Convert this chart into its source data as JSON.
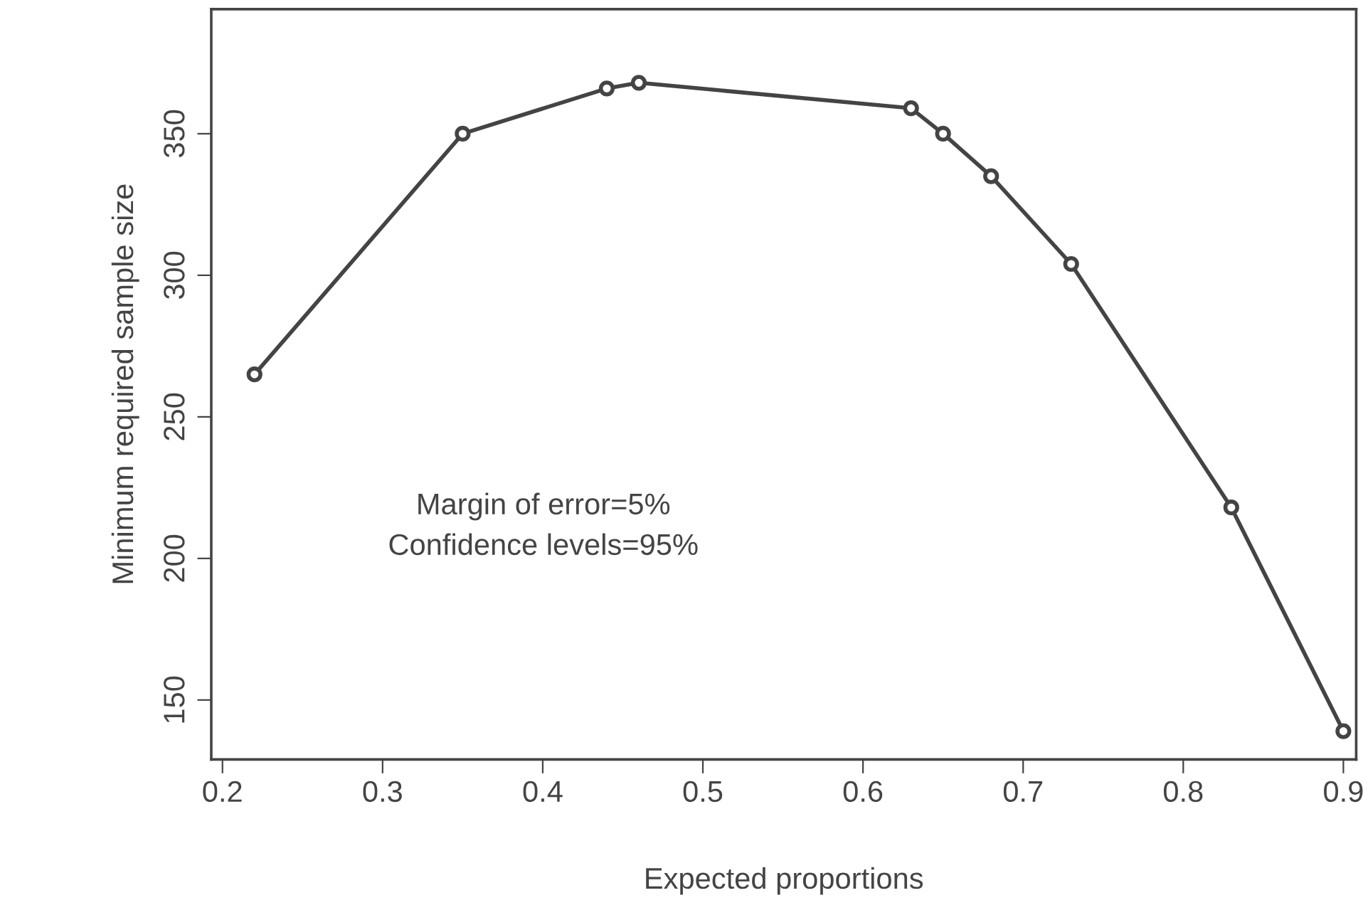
{
  "chart_data": {
    "type": "line",
    "xlabel": "Expected proportions",
    "ylabel": "Minimum required sample size",
    "x": [
      0.22,
      0.35,
      0.44,
      0.46,
      0.63,
      0.65,
      0.68,
      0.73,
      0.83,
      0.9
    ],
    "series": [
      {
        "color": "#444444",
        "values": [
          265,
          350,
          366,
          368,
          359,
          350,
          335,
          304,
          218,
          139
        ]
      }
    ],
    "marker": "circle",
    "line_style": "solid",
    "grid": false,
    "legend": false,
    "xlim": [
      0.193,
      0.908
    ],
    "ylim": [
      129,
      394
    ],
    "xticks": [
      0.2,
      0.3,
      0.4,
      0.5,
      0.6,
      0.7,
      0.8,
      0.9
    ],
    "yticks": [
      150,
      200,
      250,
      300,
      350
    ],
    "annotations": [
      "Margin of error=5%\nConfidence levels=95%"
    ]
  }
}
